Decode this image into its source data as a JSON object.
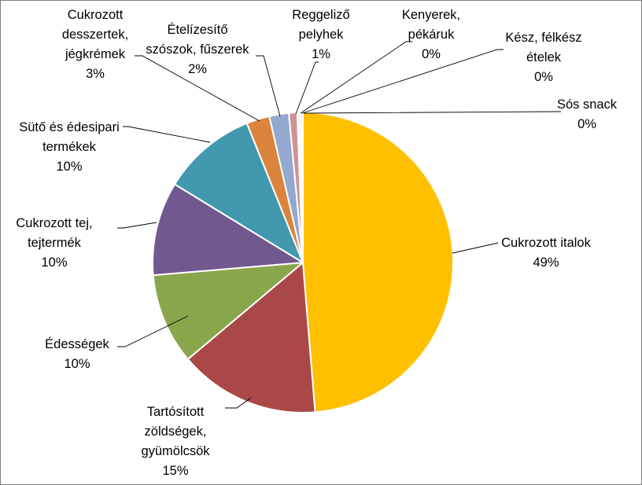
{
  "chart_data": {
    "type": "pie",
    "title": "",
    "start_angle_deg": 0,
    "direction": "clockwise",
    "slices": [
      {
        "name": "Cukrozott italok",
        "value": 48.8,
        "pct_label": "49%",
        "color": "#ffc000"
      },
      {
        "name": "Tartósított zöldségek, gyümölcsök",
        "value": 15.2,
        "pct_label": "15%",
        "color": "#a94846"
      },
      {
        "name": "Édességek",
        "value": 9.8,
        "pct_label": "10%",
        "color": "#8aa64d"
      },
      {
        "name": "Cukrozott tej, tejtermék",
        "value": 10.1,
        "pct_label": "10%",
        "color": "#71588f"
      },
      {
        "name": "Sütő és édesipari termékek",
        "value": 10.2,
        "pct_label": "10%",
        "color": "#4198af"
      },
      {
        "name": "Cukrozott desszertek, jégkrémek",
        "value": 2.5,
        "pct_label": "3%",
        "color": "#db843d"
      },
      {
        "name": "Ételízesítő szószok, fűszerek",
        "value": 2.1,
        "pct_label": "2%",
        "color": "#93a9cf"
      },
      {
        "name": "Reggeliző pelyhek",
        "value": 0.9,
        "pct_label": "1%",
        "color": "#d19392"
      },
      {
        "name": "Kenyerek, pékáruk",
        "value": 0.2,
        "pct_label": "0%",
        "color": "#b9cd96"
      },
      {
        "name": "Kész, félkész ételek",
        "value": 0.2,
        "pct_label": "0%",
        "color": "#a99bbd"
      },
      {
        "name": "Sós snack",
        "value": 0.2,
        "pct_label": "0%",
        "color": "#92c5d6"
      }
    ],
    "labels": [
      {
        "lines": [
          "Cukrozott italok",
          "49%"
        ]
      },
      {
        "lines": [
          "Tartósított",
          "zöldségek,",
          "gyümölcsök",
          "15%"
        ]
      },
      {
        "lines": [
          "Édességek",
          "10%"
        ]
      },
      {
        "lines": [
          "Cukrozott tej,",
          "tejtermék",
          "10%"
        ]
      },
      {
        "lines": [
          "Sütő és édesipari",
          "termékek",
          "10%"
        ]
      },
      {
        "lines": [
          "Cukrozott",
          "desszertek,",
          "jégkrémek",
          "3%"
        ]
      },
      {
        "lines": [
          "Ételízesítő",
          "szószok, fűszerek",
          "2%"
        ]
      },
      {
        "lines": [
          "Reggeliző",
          "pelyhek",
          "1%"
        ]
      },
      {
        "lines": [
          "Kenyerek,",
          "pékáruk",
          "0%"
        ]
      },
      {
        "lines": [
          "Kész, félkész",
          "ételek",
          "0%"
        ]
      },
      {
        "lines": [
          "Sós snack",
          "0%"
        ]
      }
    ],
    "legend": "none"
  }
}
